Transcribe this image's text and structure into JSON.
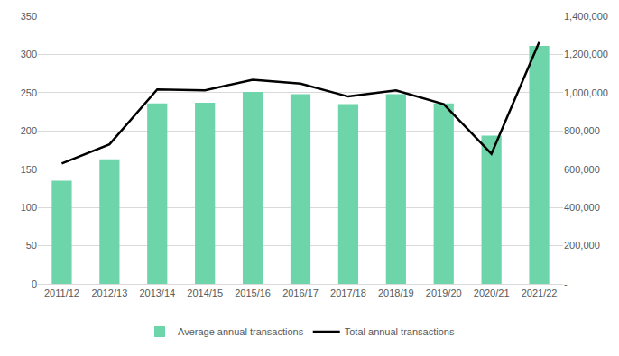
{
  "chart_data": {
    "type": "bar",
    "categories": [
      "2011/12",
      "2012/13",
      "2013/14",
      "2014/15",
      "2015/16",
      "2016/17",
      "2017/18",
      "2018/19",
      "2019/20",
      "2020/21",
      "2021/22"
    ],
    "series": [
      {
        "name": "Average annual transactions",
        "type": "bar",
        "color": "#6dd5a9",
        "values": [
          135,
          163,
          236,
          237,
          251,
          248,
          235,
          248,
          236,
          194,
          311
        ]
      },
      {
        "name": "Total annual transactions",
        "type": "line",
        "axis": "y2",
        "color": "#000000",
        "values": [
          630000,
          730000,
          1017000,
          1012000,
          1068000,
          1048000,
          980000,
          1012000,
          940000,
          680000,
          1265000
        ]
      }
    ],
    "ylim": [
      0,
      350
    ],
    "yticks": [
      0,
      50,
      100,
      150,
      200,
      250,
      300,
      350
    ],
    "y2lim": [
      0,
      1400000
    ],
    "y2ticks": [
      {
        "value": 0,
        "label": "-"
      },
      {
        "value": 200000,
        "label": "200,000"
      },
      {
        "value": 400000,
        "label": "400,000"
      },
      {
        "value": 600000,
        "label": "600,000"
      },
      {
        "value": 800000,
        "label": "800,000"
      },
      {
        "value": 1000000,
        "label": "1,000,000"
      },
      {
        "value": 1200000,
        "label": "1,200,000"
      },
      {
        "value": 1400000,
        "label": "1,400,000"
      }
    ],
    "grid": true,
    "legend": "bottom"
  }
}
